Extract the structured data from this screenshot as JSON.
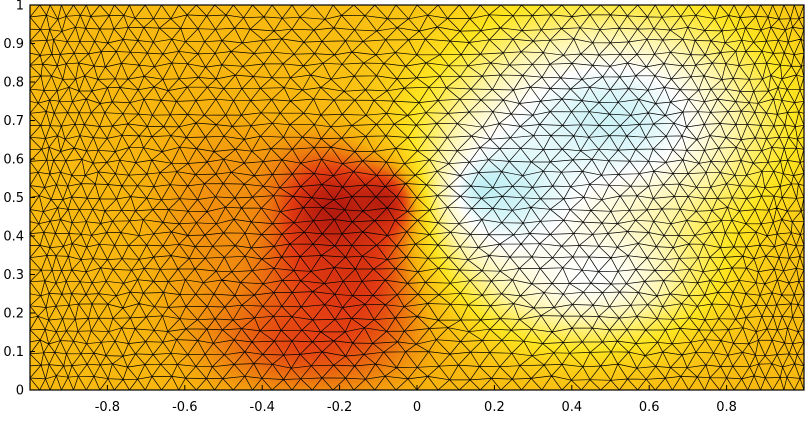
{
  "chart_data": {
    "type": "heatmap",
    "subtype": "triangulated-mesh-field",
    "title": "",
    "xlabel": "",
    "ylabel": "",
    "xlim": [
      -1,
      1
    ],
    "ylim": [
      0,
      1
    ],
    "x_ticks": [
      "-0.8",
      "-0.6",
      "-0.4",
      "-0.2",
      "0",
      "0.2",
      "0.4",
      "0.6",
      "0.8"
    ],
    "y_ticks": [
      "0",
      "0.1",
      "0.2",
      "0.3",
      "0.4",
      "0.5",
      "0.6",
      "0.7",
      "0.8",
      "0.9",
      "1"
    ],
    "grid": false,
    "colormap": [
      "#0a1a6e",
      "#19b6e6",
      "#bff0f5",
      "#ffffff",
      "#fff6a8",
      "#ffe620",
      "#f7b10d",
      "#e33b12",
      "#a00c0c",
      "#3d0000"
    ],
    "background_value": 0.65,
    "features": [
      {
        "shape": "blob",
        "cx": -0.23,
        "cy": 0.42,
        "rx": 0.2,
        "ry": 0.21,
        "value": 1.0
      },
      {
        "shape": "blob",
        "cx": -0.07,
        "cy": 0.48,
        "rx": 0.1,
        "ry": 0.11,
        "value": 1.0
      },
      {
        "shape": "blob",
        "cx": -0.2,
        "cy": 0.3,
        "rx": 0.28,
        "ry": 0.26,
        "value": 0.82
      },
      {
        "shape": "blob",
        "cx": -0.3,
        "cy": 0.15,
        "rx": 0.3,
        "ry": 0.18,
        "value": 0.78
      },
      {
        "shape": "blob",
        "cx": -0.5,
        "cy": 0.45,
        "rx": 0.25,
        "ry": 0.35,
        "value": 0.7
      },
      {
        "shape": "blob",
        "cx": 0.2,
        "cy": 0.52,
        "rx": 0.09,
        "ry": 0.07,
        "value": 0.0
      },
      {
        "shape": "blob",
        "cx": 0.25,
        "cy": 0.5,
        "rx": 0.25,
        "ry": 0.25,
        "value": 0.22
      },
      {
        "shape": "blob",
        "cx": 0.5,
        "cy": 0.7,
        "rx": 0.5,
        "ry": 0.35,
        "value": 0.25
      },
      {
        "shape": "blob",
        "cx": 0.45,
        "cy": 0.3,
        "rx": 0.35,
        "ry": 0.22,
        "value": 0.33
      }
    ],
    "mesh": {
      "type": "unstructured-triangles",
      "edge_color": "#000000"
    }
  }
}
